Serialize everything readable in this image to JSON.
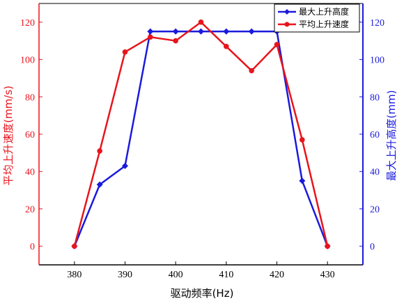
{
  "chart_data": {
    "type": "line",
    "x": [
      380,
      385,
      390,
      395,
      400,
      405,
      410,
      415,
      420,
      425,
      430
    ],
    "xlabel": "驱动频率(Hz)",
    "xlim": [
      373,
      437
    ],
    "xticks": [
      380,
      390,
      400,
      410,
      420,
      430
    ],
    "y_left": {
      "label": "平均上升速度(mm/s)",
      "lim": [
        -10,
        130
      ],
      "ticks": [
        0,
        20,
        40,
        60,
        80,
        100,
        120
      ],
      "color": "#e8141c"
    },
    "y_right": {
      "label": "最大上升高度(mm)",
      "lim": [
        -10,
        130
      ],
      "ticks": [
        0,
        20,
        40,
        60,
        80,
        100,
        120
      ],
      "color": "#1a1adc"
    },
    "series": [
      {
        "name": "最大上升高度",
        "axis": "right",
        "color": "#1a1adc",
        "marker": "diamond",
        "values": [
          0,
          33,
          43,
          115,
          115,
          115,
          115,
          115,
          115,
          35,
          0
        ]
      },
      {
        "name": "平均上升速度",
        "axis": "left",
        "color": "#e8141c",
        "marker": "circle",
        "values": [
          0,
          51,
          104,
          112,
          110,
          120,
          107,
          94,
          108,
          57,
          0
        ]
      }
    ],
    "legend": "top-right",
    "grid": false
  }
}
